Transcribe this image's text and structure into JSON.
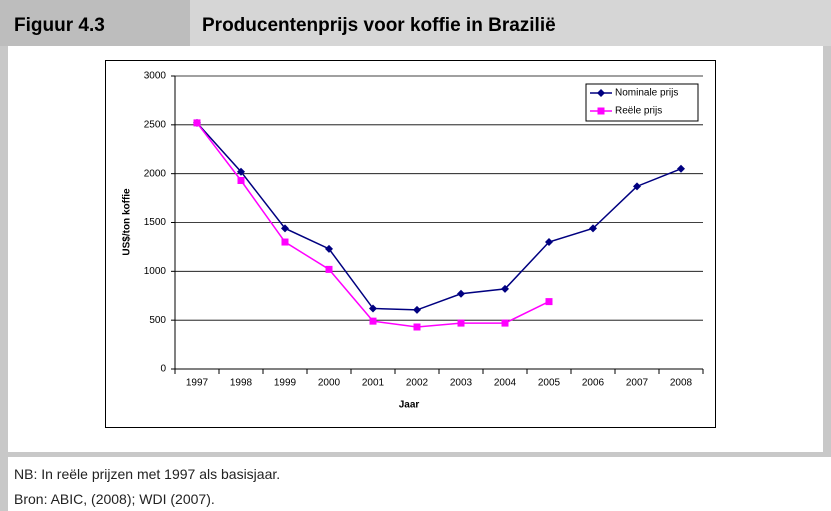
{
  "header": {
    "label": "Figuur 4.3",
    "title": "Producentenprijs voor koffie in Brazilië"
  },
  "notes": [
    "NB: In reële prijzen met 1997 als basisjaar.",
    "Bron: ABIC, (2008); WDI (2007)."
  ],
  "chart_data": {
    "type": "line",
    "x_label": "Jaar",
    "y_label": "US$/ton koffie",
    "categories": [
      "1997",
      "1998",
      "1999",
      "2000",
      "2001",
      "2002",
      "2003",
      "2004",
      "2005",
      "2006",
      "2007",
      "2008"
    ],
    "series": [
      {
        "name": "Nominale prijs",
        "color": "#000080",
        "marker": "diamond",
        "values": [
          2520,
          2020,
          1440,
          1230,
          620,
          605,
          770,
          820,
          1300,
          1440,
          1870,
          2050
        ]
      },
      {
        "name": "Reële prijs",
        "color": "#ff00ff",
        "marker": "square",
        "values": [
          2520,
          1930,
          1300,
          1020,
          490,
          430,
          470,
          470,
          690,
          null,
          null,
          null
        ]
      }
    ],
    "ylim": [
      0,
      3000
    ],
    "yticks": [
      0,
      500,
      1000,
      1500,
      2000,
      2500,
      3000
    ],
    "grid": true,
    "legend": "upper right"
  }
}
